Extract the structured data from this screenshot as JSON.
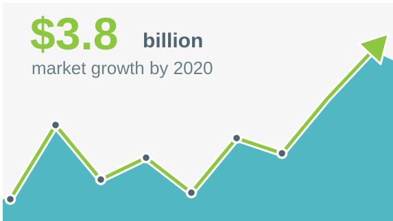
{
  "headline": {
    "value": "$3.8",
    "unit": "billion",
    "caption": "market growth by 2020"
  },
  "colors": {
    "accent_green": "#8dc63f",
    "area_teal": "#51b7c3",
    "point_fill": "#4e6470",
    "unit_text": "#4e6470",
    "caption_text": "#6b7f88",
    "panel_background": "#f5f6f5"
  },
  "icons": {
    "arrowhead": "arrow-up-right-icon"
  },
  "chart_data": {
    "type": "area",
    "grid": false,
    "legend": "none",
    "axes_visible": false,
    "xlim": [
      0,
      10
    ],
    "ylim": [
      0,
      10
    ],
    "x": [
      0,
      1,
      2,
      3,
      4,
      5,
      6,
      7,
      8
    ],
    "values": [
      1.0,
      4.4,
      1.9,
      2.9,
      1.3,
      3.8,
      3.1,
      5.6,
      7.8
    ],
    "marked_points": [
      0,
      1,
      2,
      3,
      4,
      5,
      6
    ]
  }
}
